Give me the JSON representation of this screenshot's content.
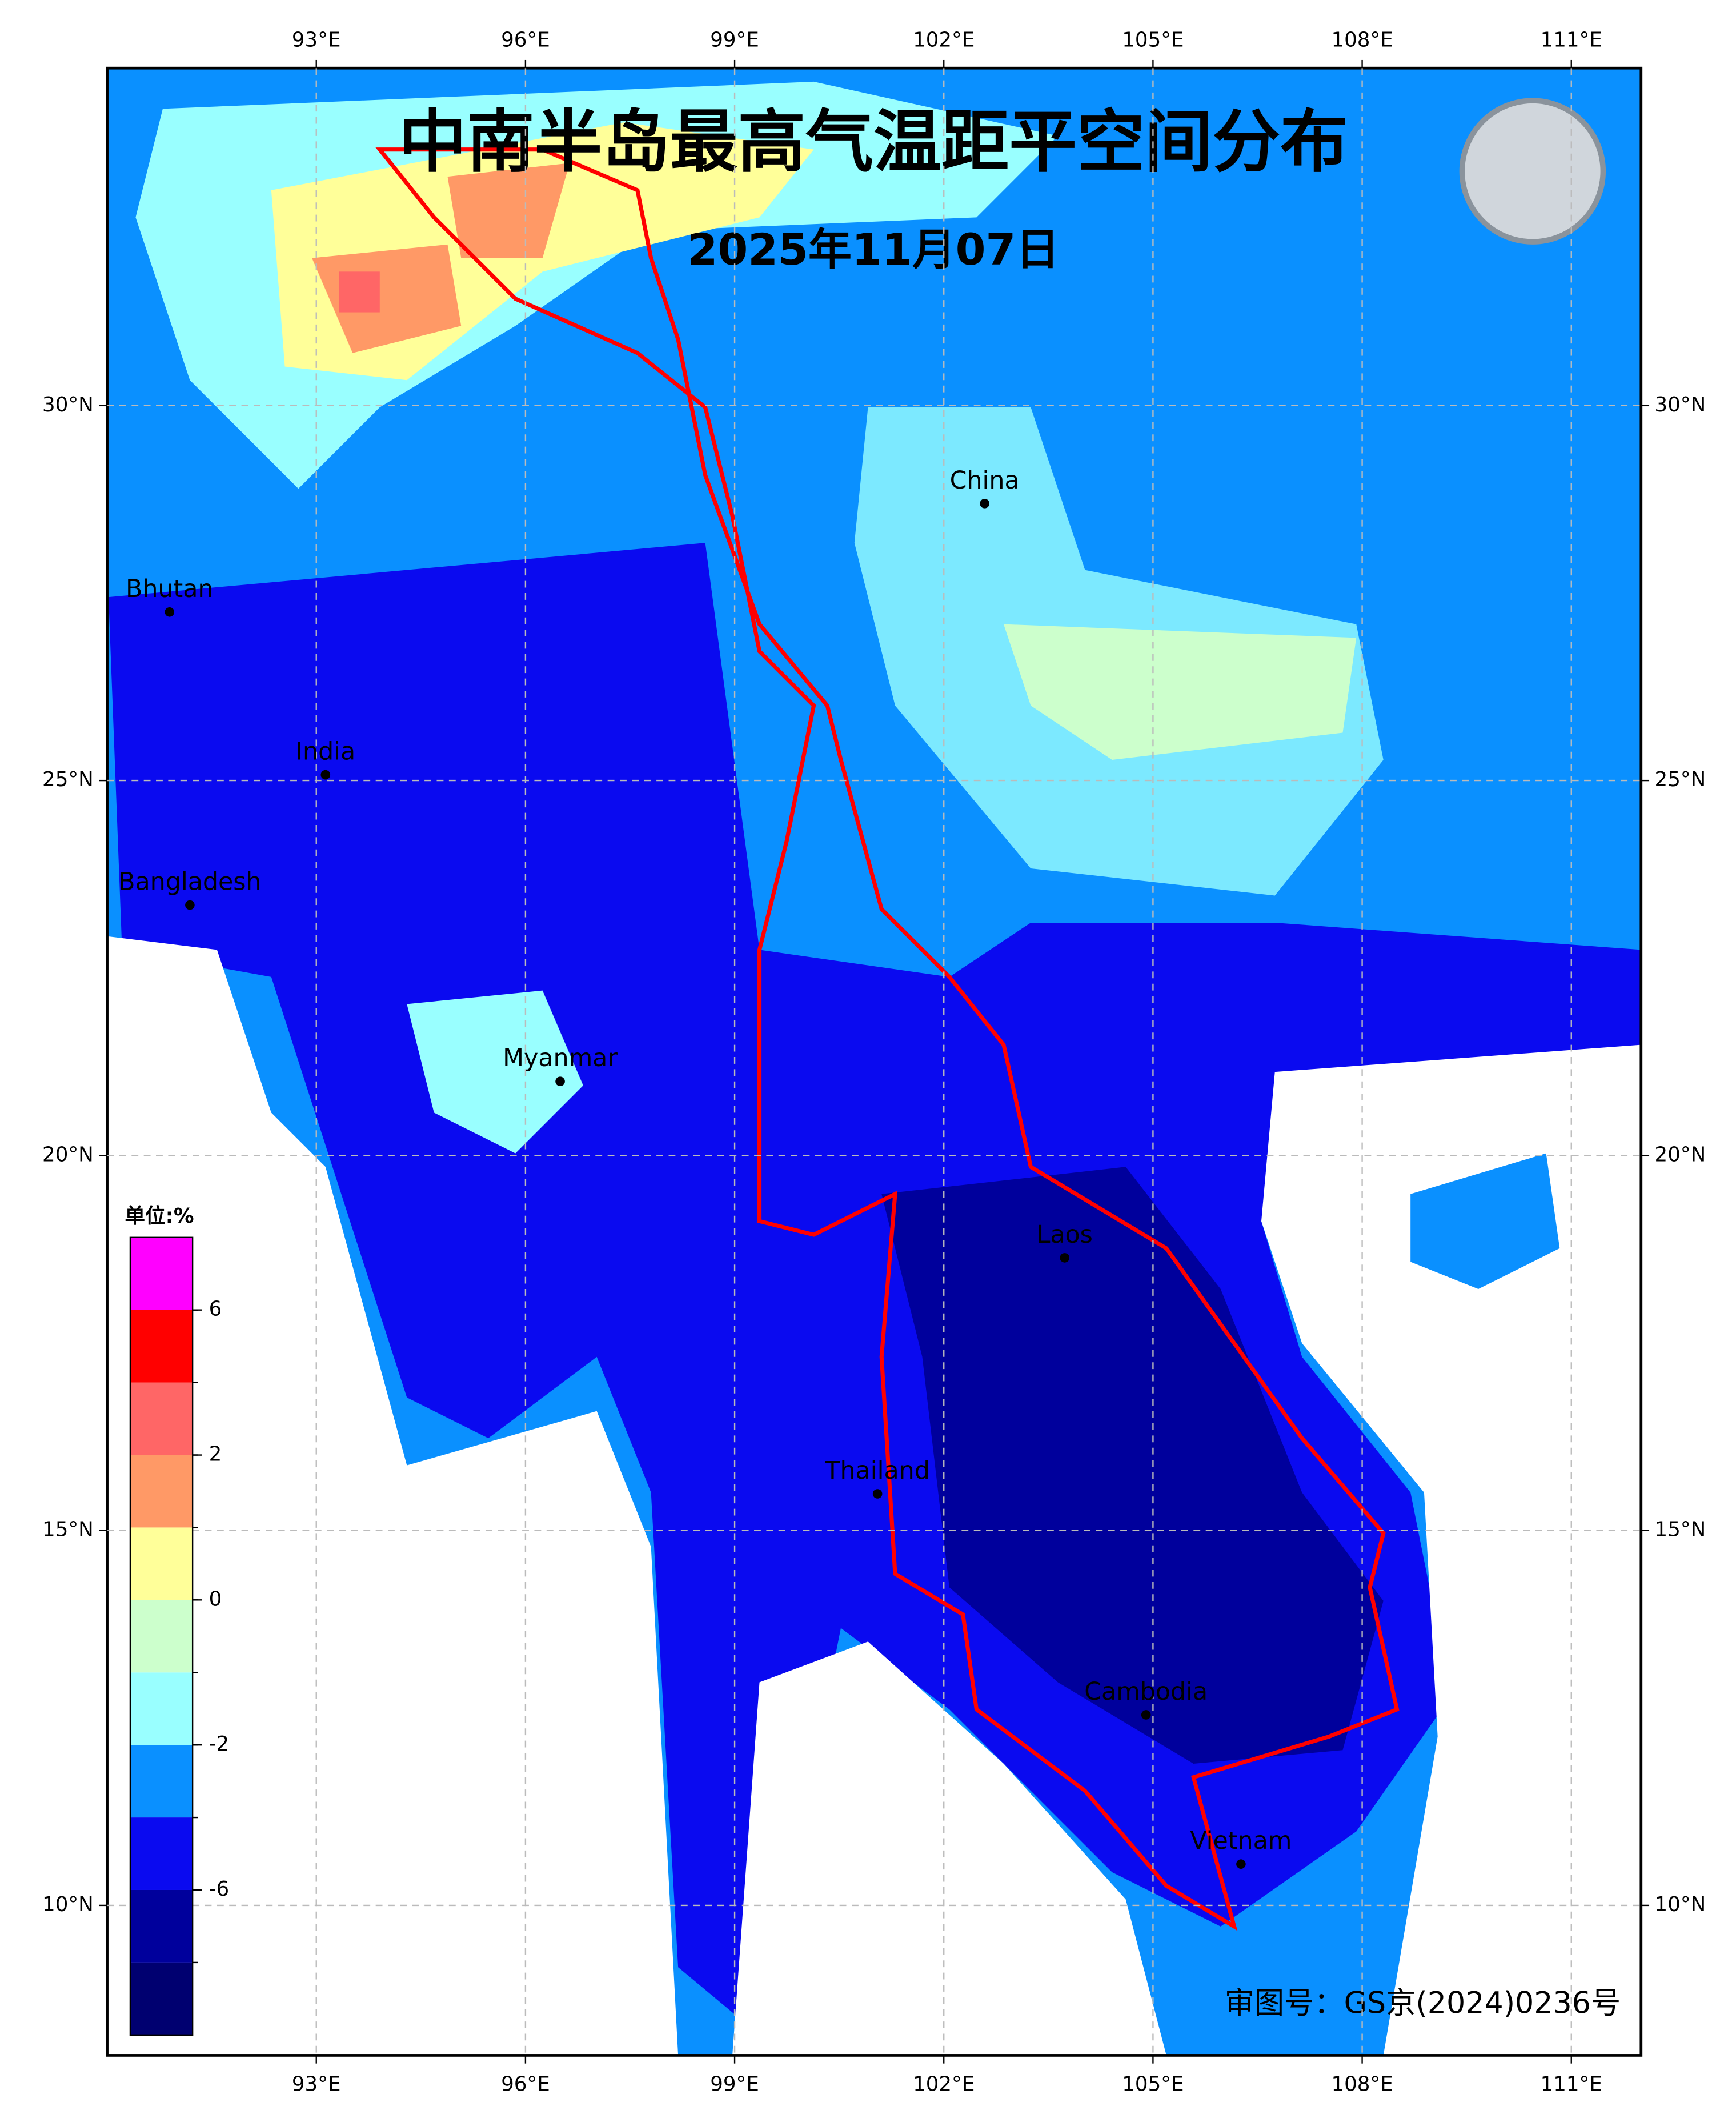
{
  "title": "中南半岛最高气温距平空间分布",
  "subtitle": "2025年11月07日",
  "credit": "审图号：GS京(2024)0236号",
  "map": {
    "xlim": [
      90,
      112
    ],
    "ylim": [
      8,
      34.5
    ],
    "xticks": [
      {
        "value": 93,
        "label": "93°E"
      },
      {
        "value": 96,
        "label": "96°E"
      },
      {
        "value": 99,
        "label": "99°E"
      },
      {
        "value": 102,
        "label": "102°E"
      },
      {
        "value": 105,
        "label": "105°E"
      },
      {
        "value": 108,
        "label": "108°E"
      },
      {
        "value": 111,
        "label": "111°E"
      }
    ],
    "yticks": [
      {
        "value": 10,
        "label": "10°N"
      },
      {
        "value": 15,
        "label": "15°N"
      },
      {
        "value": 20,
        "label": "20°N"
      },
      {
        "value": 25,
        "label": "25°N"
      },
      {
        "value": 30,
        "label": "30°N"
      }
    ],
    "places": [
      "China",
      "Bhutan",
      "India",
      "Bangladesh",
      "Myanmar",
      "Laos",
      "Thailand",
      "Cambodia",
      "Vietnam"
    ]
  },
  "colorbar": {
    "unit": "单位:%",
    "colors": [
      "#000070",
      "#00009c",
      "#0a0af0",
      "#0a90ff",
      "#99ffff",
      "#ccffcc",
      "#ffff99",
      "#ff9966",
      "#ff6666",
      "#ff0000",
      "#ff00ff"
    ],
    "ticks": [
      -6,
      -2,
      0,
      2,
      6
    ]
  }
}
